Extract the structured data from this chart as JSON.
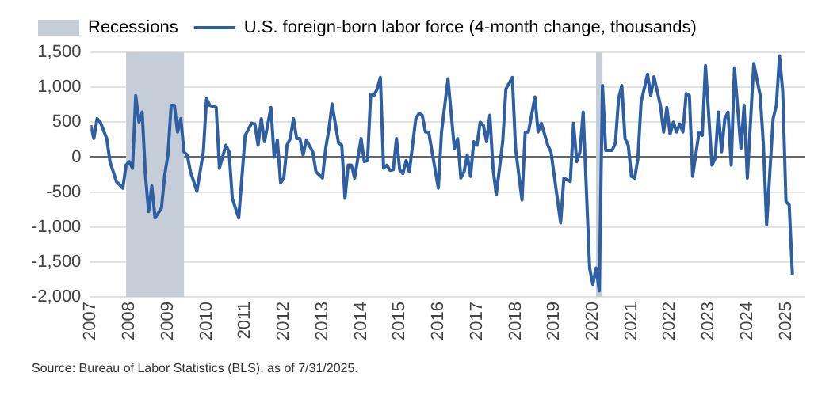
{
  "chart_data": {
    "type": "line",
    "legend": "top left",
    "grid": "y",
    "marker": "none",
    "line_style": "solid",
    "x": [
      "2007-01",
      "2007-02",
      "2007-03",
      "2007-04",
      "2007-06",
      "2007-07",
      "2007-09",
      "2007-11",
      "2007-12",
      "2008-01",
      "2008-02",
      "2008-03",
      "2008-04",
      "2008-05",
      "2008-06",
      "2008-07",
      "2008-08",
      "2008-09",
      "2008-11",
      "2008-12",
      "2009-01",
      "2009-02",
      "2009-03",
      "2009-04",
      "2009-05",
      "2009-06",
      "2009-07",
      "2009-08",
      "2009-10",
      "2009-12",
      "2010-01",
      "2010-02",
      "2010-04",
      "2010-05",
      "2010-07",
      "2010-08",
      "2010-09",
      "2010-11",
      "2011-01",
      "2011-03",
      "2011-04",
      "2011-05",
      "2011-06",
      "2011-07",
      "2011-09",
      "2011-10",
      "2011-11",
      "2011-12",
      "2012-01",
      "2012-02",
      "2012-03",
      "2012-04",
      "2012-05",
      "2012-06",
      "2012-07",
      "2012-08",
      "2012-10",
      "2012-11",
      "2013-01",
      "2013-02",
      "2013-03",
      "2013-04",
      "2013-06",
      "2013-07",
      "2013-08",
      "2013-09",
      "2013-10",
      "2013-11",
      "2014-01",
      "2014-02",
      "2014-03",
      "2014-04",
      "2014-05",
      "2014-06",
      "2014-07",
      "2014-08",
      "2014-09",
      "2014-10",
      "2014-11",
      "2014-12",
      "2015-01",
      "2015-02",
      "2015-03",
      "2015-04",
      "2015-06",
      "2015-07",
      "2015-08",
      "2015-09",
      "2015-10",
      "2016-01",
      "2016-02",
      "2016-04",
      "2016-06",
      "2016-07",
      "2016-08",
      "2016-09",
      "2016-10",
      "2016-11",
      "2016-12",
      "2017-01",
      "2017-02",
      "2017-03",
      "2017-04",
      "2017-05",
      "2017-06",
      "2017-07",
      "2017-09",
      "2017-10",
      "2017-12",
      "2018-01",
      "2018-03",
      "2018-04",
      "2018-05",
      "2018-07",
      "2018-08",
      "2018-09",
      "2018-11",
      "2018-12",
      "2019-03",
      "2019-04",
      "2019-06",
      "2019-07",
      "2019-08",
      "2019-09",
      "2019-10",
      "2019-12",
      "2020-01",
      "2020-02",
      "2020-03",
      "2020-04",
      "2020-05",
      "2020-07",
      "2020-08",
      "2020-09",
      "2020-10",
      "2020-11",
      "2020-12",
      "2021-01",
      "2021-02",
      "2021-03",
      "2021-04",
      "2021-06",
      "2021-07",
      "2021-08",
      "2021-10",
      "2021-11",
      "2021-12",
      "2022-01",
      "2022-02",
      "2022-03",
      "2022-04",
      "2022-05",
      "2022-06",
      "2022-07",
      "2022-08",
      "2022-10",
      "2022-11",
      "2022-12",
      "2023-02",
      "2023-03",
      "2023-04",
      "2023-05",
      "2023-06",
      "2023-07",
      "2023-08",
      "2023-09",
      "2023-11",
      "2023-12",
      "2024-01",
      "2024-03",
      "2024-05",
      "2024-06",
      "2024-07",
      "2024-09",
      "2024-10",
      "2024-11",
      "2024-12",
      "2025-01",
      "2025-02",
      "2025-03"
    ],
    "series": [
      {
        "name": "U.S. foreign-born labor force (4-month change, thousands)",
        "color": "#2e5fa3",
        "values": [
          455,
          265,
          550,
          500,
          265,
          -65,
          -350,
          -445,
          -115,
          -65,
          -160,
          880,
          500,
          645,
          -255,
          -780,
          -415,
          -870,
          -730,
          -255,
          30,
          740,
          740,
          360,
          550,
          75,
          30,
          -210,
          -490,
          75,
          835,
          740,
          710,
          -160,
          170,
          75,
          -590,
          -870,
          310,
          485,
          475,
          170,
          550,
          220,
          710,
          0,
          245,
          -370,
          -300,
          170,
          265,
          550,
          265,
          265,
          30,
          245,
          75,
          -210,
          -300,
          120,
          400,
          760,
          200,
          170,
          -590,
          -115,
          -115,
          -300,
          265,
          -65,
          -50,
          900,
          880,
          975,
          1140,
          -160,
          -115,
          -190,
          -180,
          265,
          -180,
          -235,
          -50,
          -210,
          550,
          625,
          600,
          360,
          360,
          -445,
          360,
          1120,
          120,
          265,
          -300,
          -210,
          30,
          -275,
          220,
          170,
          500,
          455,
          220,
          600,
          -160,
          -540,
          220,
          975,
          1140,
          120,
          -615,
          360,
          360,
          860,
          360,
          485,
          170,
          75,
          -940,
          -300,
          -350,
          485,
          -65,
          75,
          645,
          -1585,
          -1820,
          -1585,
          -1915,
          1025,
          95,
          95,
          200,
          835,
          1025,
          265,
          170,
          -275,
          -300,
          -20,
          790,
          1185,
          880,
          1150,
          740,
          360,
          710,
          330,
          500,
          360,
          475,
          360,
          910,
          880,
          -275,
          360,
          310,
          1310,
          -115,
          -20,
          645,
          75,
          550,
          645,
          -115,
          1280,
          120,
          740,
          -300,
          1340,
          880,
          170,
          -970,
          550,
          740,
          1450,
          930,
          -635,
          -685,
          -1680
        ]
      }
    ],
    "bands": [
      {
        "axis": "x",
        "from": "2007-12",
        "to": "2009-06",
        "label": "Recessions",
        "color": "#c5ced8"
      },
      {
        "axis": "x",
        "from": "2020-02",
        "to": "2020-04",
        "color": "#c5ced8"
      }
    ],
    "xlim": [
      "2007-01",
      "2025-07"
    ],
    "xticks": [
      "2007",
      "2008",
      "2009",
      "2010",
      "2011",
      "2012",
      "2013",
      "2014",
      "2015",
      "2016",
      "2017",
      "2018",
      "2019",
      "2020",
      "2021",
      "2022",
      "2023",
      "2024",
      "2025"
    ],
    "ylim": [
      -2000,
      1500
    ],
    "yticks": [
      {
        "value": -2000,
        "label": "-2,000"
      },
      {
        "value": -1500,
        "label": "-1,500"
      },
      {
        "value": -1000,
        "label": "-1,000"
      },
      {
        "value": -500,
        "label": "-500"
      },
      0,
      500,
      {
        "value": 1000,
        "label": "1,000"
      },
      {
        "value": 1500,
        "label": "1,500"
      }
    ],
    "annotations": [
      "Source: Bureau of Labor Statistics (BLS), as of 7/31/2025."
    ]
  }
}
